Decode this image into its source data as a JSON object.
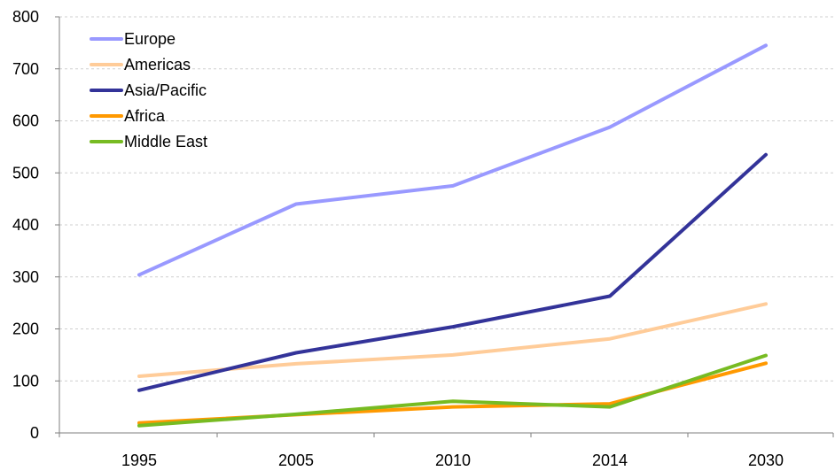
{
  "chart_data": {
    "type": "line",
    "categories": [
      "1995",
      "2005",
      "2010",
      "2014",
      "2030"
    ],
    "ylim": [
      0,
      800
    ],
    "yticks": [
      0,
      100,
      200,
      300,
      400,
      500,
      600,
      700,
      800
    ],
    "grid": true,
    "legend_position": "top-left",
    "series": [
      {
        "name": "Europe",
        "color": "#9999ff",
        "values": [
          304,
          440,
          475,
          588,
          745
        ]
      },
      {
        "name": "Americas",
        "color": "#ffcc99",
        "values": [
          109,
          133,
          150,
          181,
          248
        ]
      },
      {
        "name": "Asia/Pacific",
        "color": "#333399",
        "values": [
          82,
          154,
          204,
          263,
          535
        ]
      },
      {
        "name": "Africa",
        "color": "#ff9900",
        "values": [
          19,
          35,
          50,
          56,
          134
        ]
      },
      {
        "name": "Middle East",
        "color": "#77bb22",
        "values": [
          14,
          36,
          61,
          50,
          149
        ]
      }
    ]
  }
}
